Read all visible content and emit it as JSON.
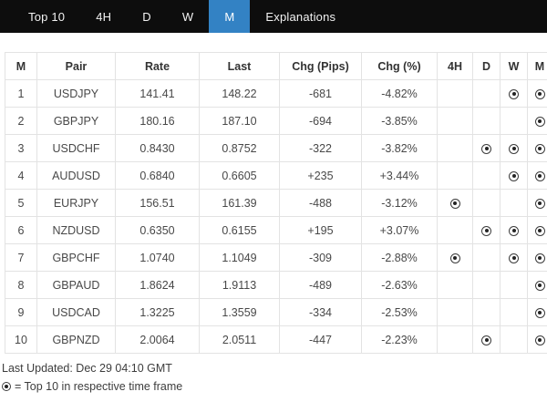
{
  "nav": {
    "tabs": [
      {
        "label": "Top 10",
        "active": false
      },
      {
        "label": "4H",
        "active": false
      },
      {
        "label": "D",
        "active": false
      },
      {
        "label": "W",
        "active": false
      },
      {
        "label": "M",
        "active": true
      },
      {
        "label": "Explanations",
        "active": false
      }
    ]
  },
  "colors": {
    "nav_bg": "#0d0d0d",
    "active_tab_bg": "#3382c4",
    "table_border": "#e3e3e3",
    "text": "#484848"
  },
  "icons": {
    "top10_marker": "circle-dot-icon"
  },
  "table": {
    "headers": [
      "M",
      "Pair",
      "Rate",
      "Last",
      "Chg (Pips)",
      "Chg (%)",
      "4H",
      "D",
      "W",
      "M"
    ],
    "rows": [
      {
        "rank": "1",
        "pair": "USDJPY",
        "rate": "141.41",
        "last": "148.22",
        "chg_pips": "-681",
        "chg_pct": "-4.82%",
        "h4": false,
        "d": false,
        "w": true,
        "m": true
      },
      {
        "rank": "2",
        "pair": "GBPJPY",
        "rate": "180.16",
        "last": "187.10",
        "chg_pips": "-694",
        "chg_pct": "-3.85%",
        "h4": false,
        "d": false,
        "w": false,
        "m": true
      },
      {
        "rank": "3",
        "pair": "USDCHF",
        "rate": "0.8430",
        "last": "0.8752",
        "chg_pips": "-322",
        "chg_pct": "-3.82%",
        "h4": false,
        "d": true,
        "w": true,
        "m": true
      },
      {
        "rank": "4",
        "pair": "AUDUSD",
        "rate": "0.6840",
        "last": "0.6605",
        "chg_pips": "+235",
        "chg_pct": "+3.44%",
        "h4": false,
        "d": false,
        "w": true,
        "m": true
      },
      {
        "rank": "5",
        "pair": "EURJPY",
        "rate": "156.51",
        "last": "161.39",
        "chg_pips": "-488",
        "chg_pct": "-3.12%",
        "h4": true,
        "d": false,
        "w": false,
        "m": true
      },
      {
        "rank": "6",
        "pair": "NZDUSD",
        "rate": "0.6350",
        "last": "0.6155",
        "chg_pips": "+195",
        "chg_pct": "+3.07%",
        "h4": false,
        "d": true,
        "w": true,
        "m": true
      },
      {
        "rank": "7",
        "pair": "GBPCHF",
        "rate": "1.0740",
        "last": "1.1049",
        "chg_pips": "-309",
        "chg_pct": "-2.88%",
        "h4": true,
        "d": false,
        "w": true,
        "m": true
      },
      {
        "rank": "8",
        "pair": "GBPAUD",
        "rate": "1.8624",
        "last": "1.9113",
        "chg_pips": "-489",
        "chg_pct": "-2.63%",
        "h4": false,
        "d": false,
        "w": false,
        "m": true
      },
      {
        "rank": "9",
        "pair": "USDCAD",
        "rate": "1.3225",
        "last": "1.3559",
        "chg_pips": "-334",
        "chg_pct": "-2.53%",
        "h4": false,
        "d": false,
        "w": false,
        "m": true
      },
      {
        "rank": "10",
        "pair": "GBPNZD",
        "rate": "2.0064",
        "last": "2.0511",
        "chg_pips": "-447",
        "chg_pct": "-2.23%",
        "h4": false,
        "d": true,
        "w": false,
        "m": true
      }
    ]
  },
  "footer": {
    "last_updated": "Last Updated: Dec 29 04:10 GMT",
    "legend_text": "= Top 10 in respective time frame"
  }
}
